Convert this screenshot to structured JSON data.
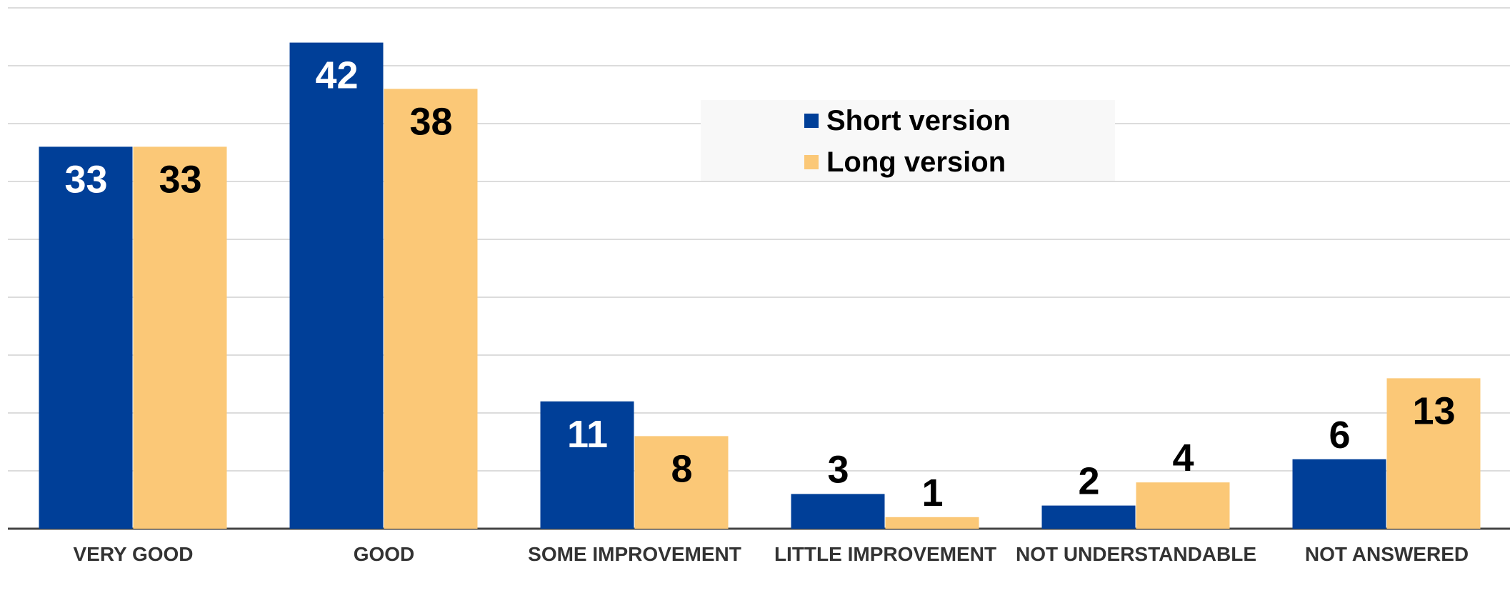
{
  "chart_data": {
    "type": "bar",
    "categories": [
      "VERY GOOD",
      "GOOD",
      "SOME IMPROVEMENT",
      "LITTLE IMPROVEMENT",
      "NOT UNDERSTANDABLE",
      "NOT ANSWERED"
    ],
    "series": [
      {
        "name": "Short version",
        "color": "#003f98",
        "values": [
          33,
          42,
          11,
          3,
          2,
          6
        ]
      },
      {
        "name": "Long version",
        "color": "#fbc877",
        "values": [
          33,
          38,
          8,
          1,
          4,
          13
        ]
      }
    ],
    "ylim": [
      0,
      45
    ],
    "yticks": [
      0,
      5,
      10,
      15,
      20,
      25,
      30,
      35,
      40,
      45
    ],
    "grid": true,
    "legend": "top-center"
  }
}
